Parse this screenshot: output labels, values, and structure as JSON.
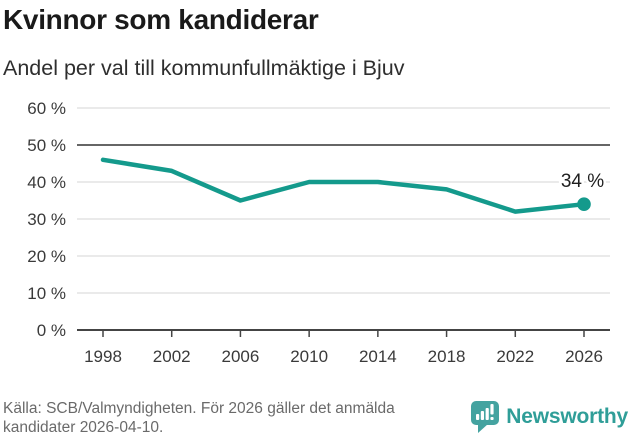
{
  "title": "Kvinnor som kandiderar",
  "subtitle": "Andel per val till kommunfullmäktige i Bjuv",
  "footer": {
    "source_line1": "Källa: SCB/Valmyndigheten. För 2026 gäller det anmälda",
    "source_line2": "kandidater 2026-04-10.",
    "brand": "Newsworthy"
  },
  "colors": {
    "line": "#149a8c",
    "point": "#149a8c",
    "grid": "#e4e4e4",
    "reference_line": "#666666",
    "axis": "#444444",
    "tick_label": "#3a3a3a",
    "annotation": "#1f1f1f",
    "logo_icon": "#44a3a0",
    "brand_text": "#2f9e98"
  },
  "chart_data": {
    "type": "line",
    "x": [
      1998,
      2002,
      2006,
      2010,
      2014,
      2018,
      2022,
      2026
    ],
    "x_labels": [
      "1998",
      "2002",
      "2006",
      "2010",
      "2014",
      "2018",
      "2022",
      "2026"
    ],
    "values": [
      46,
      43,
      35,
      40,
      40,
      38,
      32,
      34
    ],
    "ylim": [
      0,
      60
    ],
    "ytick_values": [
      0,
      10,
      20,
      30,
      40,
      50,
      60
    ],
    "ytick_labels": [
      "0 %",
      "10 %",
      "20 %",
      "30 %",
      "40 %",
      "50 %",
      "60 %"
    ],
    "reference_line": 50,
    "end_label": "34 %",
    "grid": true,
    "legend": "none"
  }
}
